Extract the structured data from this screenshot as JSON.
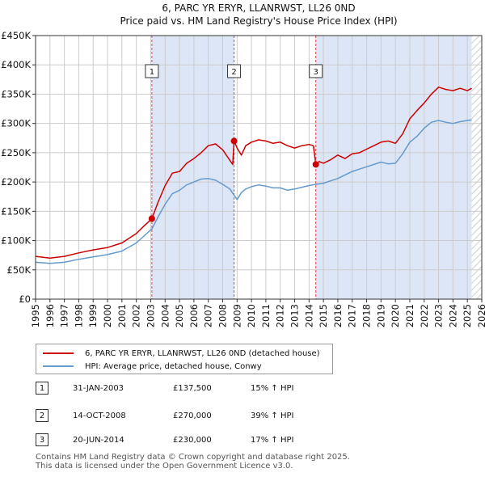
{
  "chart_data": {
    "type": "line",
    "title": "6, PARC YR ERYR, LLANRWST, LL26 0ND",
    "subtitle": "Price paid vs. HM Land Registry's House Price Index (HPI)",
    "x_range": [
      1995,
      2026
    ],
    "ylim": [
      0,
      450000
    ],
    "y_ticks": [
      0,
      50000,
      100000,
      150000,
      200000,
      250000,
      300000,
      350000,
      400000,
      450000
    ],
    "y_tick_labels": [
      "£0",
      "£50K",
      "£100K",
      "£150K",
      "£200K",
      "£250K",
      "£300K",
      "£350K",
      "£400K",
      "£450K"
    ],
    "x_ticks": [
      "1995",
      "1996",
      "1997",
      "1998",
      "1999",
      "2000",
      "2001",
      "2002",
      "2003",
      "2004",
      "2005",
      "2006",
      "2007",
      "2008",
      "2009",
      "2010",
      "2011",
      "2012",
      "2013",
      "2014",
      "2015",
      "2016",
      "2017",
      "2018",
      "2019",
      "2020",
      "2021",
      "2022",
      "2023",
      "2024",
      "2025",
      "2026"
    ],
    "colors": {
      "property": "#cc0000",
      "hpi": "#6699cc",
      "shade": "#dde6f7",
      "grid": "#cccccc"
    },
    "shaded_regions": [
      [
        2003.08,
        2008.79
      ],
      [
        2014.47,
        2025.3
      ]
    ],
    "hatched_after": 2025.3,
    "series": [
      {
        "name": "6, PARC YR ERYR, LLANRWST, LL26 0ND (detached house)",
        "color": "#cc0000",
        "x": [
          1995.0,
          1996.0,
          1997.0,
          1998.0,
          1999.0,
          2000.0,
          2001.0,
          2002.0,
          2002.5,
          2003.08,
          2003.5,
          2004.0,
          2004.5,
          2005.0,
          2005.5,
          2006.0,
          2006.5,
          2007.0,
          2007.5,
          2008.0,
          2008.7,
          2008.79,
          2009.0,
          2009.3,
          2009.6,
          2010.0,
          2010.5,
          2011.0,
          2011.5,
          2012.0,
          2012.5,
          2013.0,
          2013.5,
          2014.0,
          2014.3,
          2014.47,
          2014.7,
          2015.0,
          2015.5,
          2016.0,
          2016.5,
          2017.0,
          2017.5,
          2018.0,
          2018.5,
          2019.0,
          2019.5,
          2020.0,
          2020.5,
          2021.0,
          2021.5,
          2022.0,
          2022.5,
          2023.0,
          2023.5,
          2024.0,
          2024.5,
          2025.0,
          2025.3
        ],
        "values": [
          73000,
          70000,
          73000,
          79000,
          84000,
          88000,
          96000,
          112000,
          124000,
          137500,
          165000,
          194000,
          215000,
          218000,
          232000,
          240000,
          250000,
          262000,
          265000,
          255000,
          230000,
          270000,
          258000,
          246000,
          262000,
          268000,
          272000,
          270000,
          266000,
          268000,
          262000,
          258000,
          262000,
          264000,
          262000,
          230000,
          235000,
          232000,
          238000,
          246000,
          240000,
          248000,
          250000,
          256000,
          262000,
          268000,
          270000,
          266000,
          282000,
          308000,
          322000,
          335000,
          350000,
          362000,
          358000,
          356000,
          360000,
          356000,
          360000
        ]
      },
      {
        "name": "HPI: Average price, detached house, Conwy",
        "color": "#6699cc",
        "x": [
          1995.0,
          1996.0,
          1997.0,
          1998.0,
          1999.0,
          2000.0,
          2001.0,
          2002.0,
          2002.5,
          2003.08,
          2003.5,
          2004.0,
          2004.5,
          2005.0,
          2005.5,
          2006.0,
          2006.5,
          2007.0,
          2007.5,
          2008.0,
          2008.5,
          2009.0,
          2009.3,
          2009.6,
          2010.0,
          2010.5,
          2011.0,
          2011.5,
          2012.0,
          2012.5,
          2013.0,
          2013.5,
          2014.0,
          2014.47,
          2015.0,
          2015.5,
          2016.0,
          2016.5,
          2017.0,
          2017.5,
          2018.0,
          2018.5,
          2019.0,
          2019.5,
          2020.0,
          2020.5,
          2021.0,
          2021.5,
          2022.0,
          2022.5,
          2023.0,
          2023.5,
          2024.0,
          2024.5,
          2025.0,
          2025.3
        ],
        "values": [
          63000,
          61000,
          63000,
          68000,
          72000,
          76000,
          82000,
          96000,
          107000,
          120000,
          140000,
          162000,
          180000,
          186000,
          195000,
          200000,
          205000,
          206000,
          203000,
          196000,
          188000,
          170000,
          182000,
          188000,
          192000,
          195000,
          193000,
          190000,
          190000,
          186000,
          188000,
          191000,
          194000,
          196000,
          198000,
          202000,
          206000,
          212000,
          218000,
          222000,
          226000,
          230000,
          234000,
          231000,
          232000,
          248000,
          268000,
          278000,
          292000,
          302000,
          305000,
          302000,
          300000,
          303000,
          305000,
          306000
        ]
      }
    ],
    "sales": [
      {
        "label": "1",
        "x": 2003.08,
        "y": 137500
      },
      {
        "label": "2",
        "x": 2008.79,
        "y": 270000
      },
      {
        "label": "3",
        "x": 2014.47,
        "y": 230000
      }
    ]
  },
  "legend": {
    "property_label": "6, PARC YR ERYR, LLANRWST, LL26 0ND (detached house)",
    "hpi_label": "HPI: Average price, detached house, Conwy"
  },
  "transactions": [
    {
      "num": "1",
      "date": "31-JAN-2003",
      "price": "£137,500",
      "hpi": "15% ↑ HPI"
    },
    {
      "num": "2",
      "date": "14-OCT-2008",
      "price": "£270,000",
      "hpi": "39% ↑ HPI"
    },
    {
      "num": "3",
      "date": "20-JUN-2014",
      "price": "£230,000",
      "hpi": "17% ↑ HPI"
    }
  ],
  "footer": {
    "line1": "Contains HM Land Registry data © Crown copyright and database right 2025.",
    "line2": "This data is licensed under the Open Government Licence v3.0."
  }
}
